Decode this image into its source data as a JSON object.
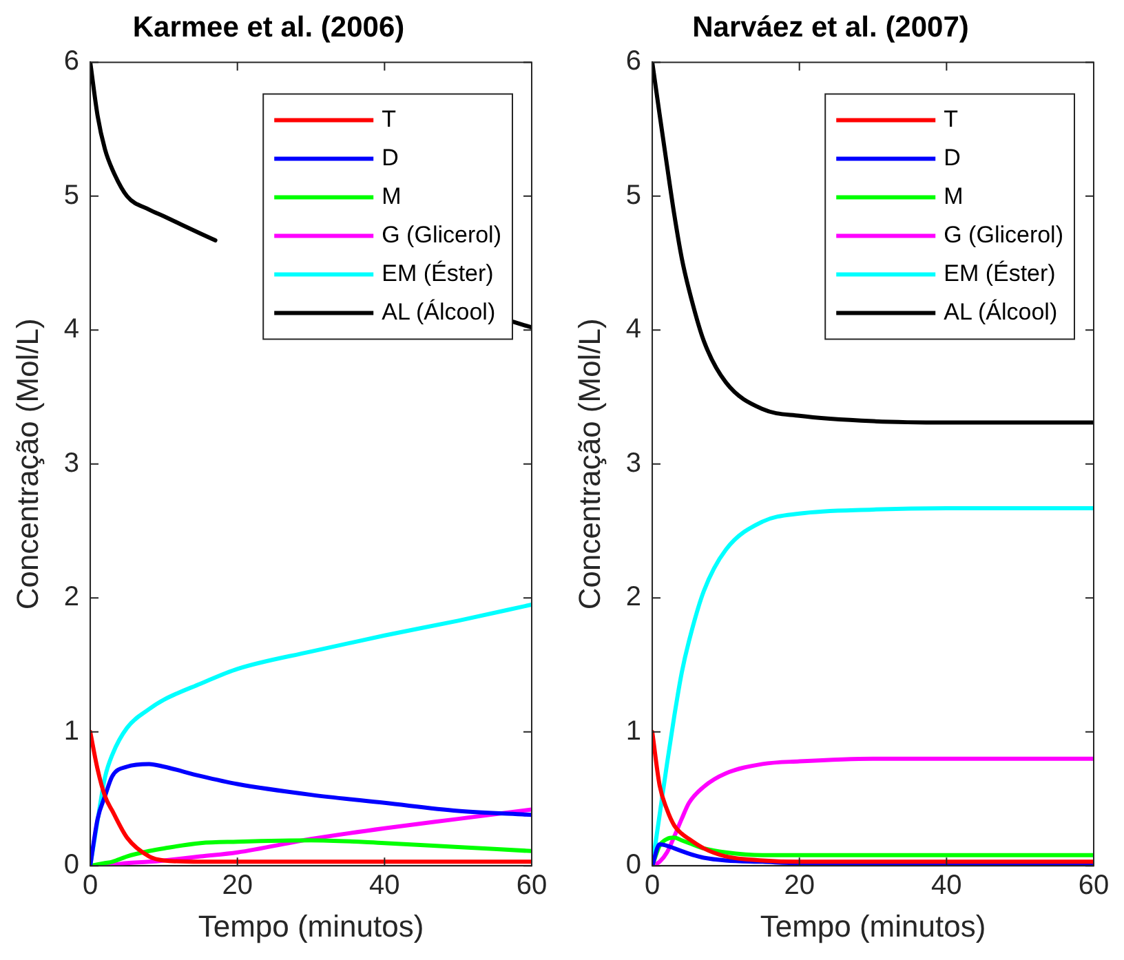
{
  "chart_data": [
    {
      "type": "line",
      "title": "Karmee et al. (2006)",
      "xlabel": "Tempo (minutos)",
      "ylabel": "Concentração (Mol/L)",
      "xlim": [
        0,
        60
      ],
      "xticks": [
        0,
        20,
        40,
        60
      ],
      "ylim": [
        0,
        6
      ],
      "yticks": [
        0,
        1,
        2,
        3,
        4,
        5,
        6
      ],
      "grid": false,
      "legend": "top right",
      "x": [
        0,
        1,
        2,
        3,
        5,
        8,
        10,
        15,
        20,
        30,
        40,
        50,
        60
      ],
      "series": [
        {
          "name": "T",
          "color": "#ff0000",
          "values": [
            1,
            0.72,
            0.52,
            0.41,
            0.21,
            0.07,
            0.04,
            0.03,
            0.03,
            0.03,
            0.03,
            0.03,
            0.03
          ]
        },
        {
          "name": "D",
          "color": "#0000ff",
          "values": [
            0,
            0.35,
            0.52,
            0.67,
            0.74,
            0.76,
            0.74,
            0.67,
            0.61,
            0.53,
            0.47,
            0.41,
            0.38
          ]
        },
        {
          "name": "M",
          "color": "#00ff00",
          "values": [
            0,
            0.01,
            0.02,
            0.03,
            0.07,
            0.11,
            0.13,
            0.17,
            0.18,
            0.19,
            0.17,
            0.14,
            0.11
          ]
        },
        {
          "name": "G (Glicerol)",
          "color": "#ff00ff",
          "values": [
            0,
            0,
            0.01,
            0.01,
            0.02,
            0.03,
            0.04,
            0.07,
            0.1,
            0.2,
            0.28,
            0.35,
            0.42
          ]
        },
        {
          "name": "EM (Éster)",
          "color": "#00ffff",
          "values": [
            0,
            0.34,
            0.66,
            0.83,
            1.03,
            1.17,
            1.24,
            1.36,
            1.47,
            1.6,
            1.72,
            1.83,
            1.95
          ]
        },
        {
          "name": "AL (Álcool)",
          "color": "#000000",
          "x": [
            0,
            1,
            2,
            3,
            5,
            8,
            10,
            15,
            17,
            37,
            57,
            60
          ],
          "values": [
            6,
            5.6,
            5.35,
            5.2,
            5.0,
            4.9,
            4.85,
            4.72,
            4.67,
            null,
            4.07,
            4.02
          ]
        }
      ]
    },
    {
      "type": "line",
      "title": "Narváez et al. (2007)",
      "xlabel": "Tempo (minutos)",
      "ylabel": "Concentração (Mol/L)",
      "xlim": [
        0,
        60
      ],
      "xticks": [
        0,
        20,
        40,
        60
      ],
      "ylim": [
        0,
        6
      ],
      "yticks": [
        0,
        1,
        2,
        3,
        4,
        5,
        6
      ],
      "grid": false,
      "legend": "top right",
      "x": [
        0,
        1,
        2,
        3,
        4,
        5,
        7,
        10,
        15,
        20,
        30,
        40,
        60
      ],
      "series": [
        {
          "name": "T",
          "color": "#ff0000",
          "values": [
            1,
            0.6,
            0.42,
            0.3,
            0.24,
            0.2,
            0.13,
            0.07,
            0.04,
            0.03,
            0.03,
            0.03,
            0.03
          ]
        },
        {
          "name": "D",
          "color": "#0000ff",
          "values": [
            0,
            0.16,
            0.15,
            0.13,
            0.11,
            0.09,
            0.06,
            0.04,
            0.03,
            0.02,
            0.02,
            0.02,
            0.02
          ]
        },
        {
          "name": "M",
          "color": "#00ff00",
          "values": [
            0,
            0.15,
            0.2,
            0.21,
            0.19,
            0.17,
            0.13,
            0.1,
            0.08,
            0.08,
            0.08,
            0.08,
            0.08
          ]
        },
        {
          "name": "G (Glicerol)",
          "color": "#ff00ff",
          "values": [
            0,
            0.03,
            0.1,
            0.22,
            0.35,
            0.47,
            0.59,
            0.69,
            0.76,
            0.78,
            0.8,
            0.8,
            0.8
          ]
        },
        {
          "name": "EM (Éster)",
          "color": "#00ffff",
          "values": [
            0,
            0.38,
            0.76,
            1.12,
            1.44,
            1.68,
            2.05,
            2.36,
            2.57,
            2.63,
            2.66,
            2.67,
            2.67
          ]
        },
        {
          "name": "AL (Álcool)",
          "color": "#000000",
          "values": [
            6,
            5.61,
            5.23,
            4.86,
            4.54,
            4.3,
            3.92,
            3.61,
            3.41,
            3.36,
            3.32,
            3.31,
            3.31
          ]
        }
      ]
    }
  ]
}
